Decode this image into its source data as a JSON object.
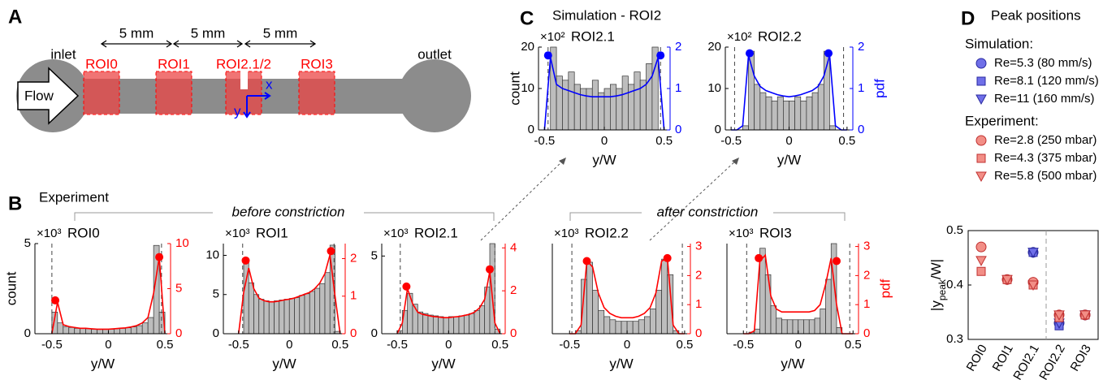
{
  "panel_labels": [
    "A",
    "B",
    "C",
    "D"
  ],
  "diagram": {
    "inlet": "inlet",
    "outlet": "outlet",
    "flow": "Flow",
    "rois": [
      "ROI0",
      "ROI1",
      "ROI2.1/2",
      "ROI3"
    ],
    "spacings": [
      "5 mm",
      "5 mm",
      "5 mm"
    ],
    "axis_x": "x",
    "axis_y": "y"
  },
  "annotations": {
    "experiment": "Experiment",
    "before": "before constriction",
    "after": "after constriction",
    "simulation": "Simulation - ROI2"
  },
  "chart_data": [
    {
      "type": "histogram",
      "title": "ROI0",
      "multiplier": "×10³",
      "color": "#ff0000",
      "xlabel": "y/W",
      "ylabel": "count",
      "bins": [
        -0.5,
        -0.45,
        -0.4,
        -0.35,
        -0.3,
        -0.25,
        -0.2,
        -0.15,
        -0.1,
        -0.05,
        0,
        0.05,
        0.1,
        0.15,
        0.2,
        0.25,
        0.3,
        0.35,
        0.4,
        0.45,
        0.5
      ],
      "counts": [
        1.2,
        0.6,
        0.4,
        0.35,
        0.3,
        0.3,
        0.28,
        0.25,
        0.25,
        0.25,
        0.25,
        0.28,
        0.3,
        0.33,
        0.38,
        0.45,
        0.6,
        0.9,
        4.9,
        1.2
      ],
      "pdf": {
        "x": [
          -0.5,
          -0.45,
          -0.4,
          -0.35,
          -0.3,
          -0.25,
          -0.2,
          -0.15,
          -0.1,
          -0.05,
          0,
          0.05,
          0.1,
          0.15,
          0.2,
          0.25,
          0.3,
          0.35,
          0.4,
          0.45,
          0.5
        ],
        "y": [
          0,
          3.5,
          1.0,
          0.8,
          0.7,
          0.6,
          0.6,
          0.55,
          0.5,
          0.5,
          0.5,
          0.55,
          0.6,
          0.65,
          0.75,
          0.9,
          1.2,
          1.8,
          4.5,
          8.5,
          0
        ]
      },
      "peaks": {
        "x": [
          -0.47,
          0.45
        ],
        "y": [
          3.7,
          8.5
        ]
      },
      "walls": [
        -0.5,
        0.47
      ],
      "xlim": [
        -0.65,
        0.55
      ],
      "xticks": [
        -0.5,
        0,
        0.5
      ],
      "ylim": [
        0,
        5
      ],
      "yticks": [
        0,
        5
      ],
      "y2lim": [
        0,
        10
      ],
      "y2ticks": [
        0,
        5,
        10
      ]
    },
    {
      "type": "histogram",
      "title": "ROI1",
      "multiplier": "×10³",
      "color": "#ff0000",
      "xlabel": "y/W",
      "bins": [
        -0.5,
        -0.45,
        -0.4,
        -0.35,
        -0.3,
        -0.25,
        -0.2,
        -0.15,
        -0.1,
        -0.05,
        0,
        0.05,
        0.1,
        0.15,
        0.2,
        0.25,
        0.3,
        0.35,
        0.4,
        0.45,
        0.5
      ],
      "counts": [
        0,
        9.5,
        6.5,
        5,
        4.4,
        4.2,
        4.1,
        4.2,
        4.3,
        4.4,
        4.5,
        4.6,
        4.9,
        5.1,
        5.4,
        5.8,
        6.4,
        7.8,
        11.3,
        0.3
      ],
      "pdf": {
        "x": [
          -0.5,
          -0.45,
          -0.4,
          -0.35,
          -0.3,
          -0.25,
          -0.2,
          -0.15,
          -0.1,
          -0.05,
          0,
          0.05,
          0.1,
          0.15,
          0.2,
          0.25,
          0.3,
          0.35,
          0.4,
          0.45,
          0.5
        ],
        "y": [
          0,
          1.1,
          1.75,
          1.2,
          0.95,
          0.88,
          0.85,
          0.85,
          0.87,
          0.9,
          0.92,
          0.95,
          1.0,
          1.05,
          1.1,
          1.2,
          1.35,
          1.6,
          2.1,
          1.0,
          0
        ]
      },
      "peaks": {
        "x": [
          -0.43,
          0.41
        ],
        "y": [
          1.95,
          2.2
        ]
      },
      "walls": [
        -0.46,
        0.44
      ],
      "xlim": [
        -0.65,
        0.55
      ],
      "xticks": [
        -0.5,
        0,
        0.5
      ],
      "ylim": [
        0,
        11.5
      ],
      "yticks": [
        0,
        5,
        10
      ],
      "y2lim": [
        0,
        2.4
      ],
      "y2ticks": [
        0,
        1,
        2
      ]
    },
    {
      "type": "histogram",
      "title": "ROI2.1",
      "multiplier": "×10³",
      "color": "#ff0000",
      "xlabel": "y/W",
      "bins": [
        -0.5,
        -0.45,
        -0.4,
        -0.35,
        -0.3,
        -0.25,
        -0.2,
        -0.15,
        -0.1,
        -0.05,
        0,
        0.05,
        0.1,
        0.15,
        0.2,
        0.25,
        0.3,
        0.35,
        0.4,
        0.45,
        0.5
      ],
      "counts": [
        0.2,
        1.5,
        2.6,
        1.9,
        1.4,
        1.3,
        1.2,
        1.15,
        1.1,
        1.05,
        1.1,
        1.1,
        1.15,
        1.2,
        1.3,
        1.5,
        1.8,
        3.0,
        5.8,
        0.3
      ],
      "pdf": {
        "x": [
          -0.5,
          -0.45,
          -0.4,
          -0.35,
          -0.3,
          -0.25,
          -0.2,
          -0.15,
          -0.1,
          -0.05,
          0,
          0.05,
          0.1,
          0.15,
          0.2,
          0.25,
          0.3,
          0.35,
          0.4,
          0.45,
          0.5
        ],
        "y": [
          0,
          0.5,
          2.1,
          1.4,
          1.0,
          0.9,
          0.85,
          0.8,
          0.78,
          0.75,
          0.75,
          0.78,
          0.8,
          0.85,
          0.9,
          1.0,
          1.2,
          1.6,
          2.9,
          0.5,
          0
        ]
      },
      "peaks": {
        "x": [
          -0.41,
          0.4
        ],
        "y": [
          2.2,
          3.0
        ]
      },
      "walls": [
        -0.47,
        0.45
      ],
      "xlim": [
        -0.65,
        0.55
      ],
      "xticks": [
        -0.5,
        0,
        0.5
      ],
      "ylim": [
        0,
        5.8
      ],
      "yticks": [
        0,
        5
      ],
      "y2lim": [
        0,
        4.2
      ],
      "y2ticks": [
        0,
        2,
        4
      ]
    },
    {
      "type": "histogram",
      "title": "ROI2.2",
      "multiplier": "×10³",
      "color": "#ff0000",
      "xlabel": "y/W",
      "bins": [
        -0.5,
        -0.45,
        -0.4,
        -0.35,
        -0.3,
        -0.25,
        -0.2,
        -0.15,
        -0.1,
        -0.05,
        0,
        0.05,
        0.1,
        0.15,
        0.2,
        0.25,
        0.3,
        0.35,
        0.4,
        0.45,
        0.5
      ],
      "counts": [
        0,
        0.2,
        3.5,
        4.6,
        2.8,
        1.5,
        1.1,
        0.9,
        0.8,
        0.8,
        0.8,
        0.8,
        0.9,
        1.1,
        1.6,
        2.8,
        4.8,
        3.8,
        0.2,
        0
      ],
      "pdf": {
        "x": [
          -0.5,
          -0.45,
          -0.4,
          -0.35,
          -0.3,
          -0.25,
          -0.2,
          -0.15,
          -0.1,
          -0.05,
          0,
          0.05,
          0.1,
          0.15,
          0.2,
          0.25,
          0.3,
          0.35,
          0.4,
          0.45,
          0.5
        ],
        "y": [
          0,
          0,
          0.3,
          2.5,
          2.3,
          1.4,
          0.9,
          0.7,
          0.6,
          0.55,
          0.55,
          0.55,
          0.6,
          0.7,
          0.9,
          1.4,
          2.5,
          2.6,
          0.3,
          0,
          0
        ]
      },
      "peaks": {
        "x": [
          -0.35,
          0.35
        ],
        "y": [
          2.5,
          2.6
        ]
      },
      "walls": [
        -0.48,
        0.48
      ],
      "xlim": [
        -0.65,
        0.55
      ],
      "xticks": [
        -0.5,
        0,
        0.5
      ],
      "ylim": [
        0,
        5.8
      ],
      "y2lim": [
        0,
        3.1
      ],
      "y2ticks": [
        0,
        1,
        2,
        3
      ]
    },
    {
      "type": "histogram",
      "title": "ROI3",
      "multiplier": "×10³",
      "color": "#ff0000",
      "xlabel": "y/W",
      "y2label": "pdf",
      "bins": [
        -0.5,
        -0.45,
        -0.4,
        -0.35,
        -0.3,
        -0.25,
        -0.2,
        -0.15,
        -0.1,
        -0.05,
        0,
        0.05,
        0.1,
        0.15,
        0.2,
        0.25,
        0.3,
        0.35,
        0.4,
        0.45,
        0.5
      ],
      "counts": [
        0,
        0.1,
        0.3,
        5.5,
        3.8,
        1.8,
        1.0,
        0.9,
        0.9,
        0.9,
        0.9,
        0.9,
        0.9,
        1.0,
        1.6,
        3.5,
        5.8,
        0.4,
        0,
        0
      ],
      "pdf": {
        "x": [
          -0.5,
          -0.45,
          -0.4,
          -0.35,
          -0.3,
          -0.25,
          -0.2,
          -0.15,
          -0.1,
          -0.05,
          0,
          0.05,
          0.1,
          0.15,
          0.2,
          0.25,
          0.3,
          0.35,
          0.4,
          0.45,
          0.5
        ],
        "y": [
          0,
          0,
          0.1,
          2.5,
          2.7,
          1.3,
          0.85,
          0.75,
          0.75,
          0.75,
          0.75,
          0.75,
          0.75,
          0.8,
          1.0,
          1.7,
          2.6,
          1.0,
          0,
          0,
          0
        ]
      },
      "peaks": {
        "x": [
          -0.36,
          0.35
        ],
        "y": [
          2.6,
          2.5
        ]
      },
      "walls": [
        -0.47,
        0.47
      ],
      "xlim": [
        -0.65,
        0.55
      ],
      "xticks": [
        -0.5,
        0,
        0.5
      ],
      "ylim": [
        0,
        5.8
      ],
      "y2lim": [
        0,
        3.1
      ],
      "y2ticks": [
        0,
        1,
        2,
        3
      ]
    },
    {
      "type": "histogram",
      "title": "ROI2.1",
      "multiplier": "×10²",
      "color": "#0000ff",
      "xlabel": "y/W",
      "ylabel": "count",
      "bins": [
        -0.5,
        -0.45,
        -0.4,
        -0.35,
        -0.3,
        -0.25,
        -0.2,
        -0.15,
        -0.1,
        -0.05,
        0,
        0.05,
        0.1,
        0.15,
        0.2,
        0.25,
        0.3,
        0.35,
        0.4,
        0.45,
        0.5
      ],
      "counts": [
        0,
        20,
        13,
        12,
        14,
        11,
        10,
        10,
        12,
        9,
        10,
        11,
        10,
        13,
        11,
        14,
        12,
        16,
        20,
        0
      ],
      "pdf": {
        "x": [
          -0.5,
          -0.45,
          -0.4,
          -0.35,
          -0.3,
          -0.25,
          -0.2,
          -0.15,
          -0.1,
          -0.05,
          0,
          0.05,
          0.1,
          0.15,
          0.2,
          0.25,
          0.3,
          0.35,
          0.4,
          0.45,
          0.5
        ],
        "y": [
          0,
          1.75,
          1.1,
          1.0,
          0.95,
          0.9,
          0.85,
          0.82,
          0.8,
          0.8,
          0.8,
          0.8,
          0.82,
          0.85,
          0.9,
          0.95,
          1.0,
          1.1,
          1.3,
          1.75,
          0
        ]
      },
      "peaks": {
        "x": [
          -0.47,
          0.47
        ],
        "y": [
          1.8,
          1.8
        ]
      },
      "walls": [
        -0.47,
        0.47
      ],
      "xlim": [
        -0.55,
        0.55
      ],
      "xticks": [
        -0.5,
        0,
        0.5
      ],
      "ylim": [
        0,
        20
      ],
      "yticks": [
        0,
        10,
        20
      ],
      "y2lim": [
        0,
        2
      ],
      "y2ticks": [
        0,
        1,
        2
      ]
    },
    {
      "type": "histogram",
      "title": "ROI2.2",
      "multiplier": "×10²",
      "color": "#0000ff",
      "xlabel": "y/W",
      "y2label": "pdf",
      "bins": [
        -0.5,
        -0.45,
        -0.4,
        -0.35,
        -0.3,
        -0.25,
        -0.2,
        -0.15,
        -0.1,
        -0.05,
        0,
        0.05,
        0.1,
        0.15,
        0.2,
        0.25,
        0.3,
        0.35,
        0.4,
        0.45,
        0.5
      ],
      "counts": [
        0,
        0,
        1,
        19,
        11,
        9,
        8,
        7,
        8,
        7,
        7,
        8,
        7,
        8,
        9,
        11,
        19,
        1,
        0,
        0
      ],
      "pdf": {
        "x": [
          -0.5,
          -0.45,
          -0.4,
          -0.35,
          -0.3,
          -0.25,
          -0.2,
          -0.15,
          -0.1,
          -0.05,
          0,
          0.05,
          0.1,
          0.15,
          0.2,
          0.25,
          0.3,
          0.35,
          0.4,
          0.45,
          0.5
        ],
        "y": [
          0,
          0,
          0.1,
          1.8,
          1.3,
          1.05,
          0.95,
          0.9,
          0.85,
          0.82,
          0.8,
          0.82,
          0.85,
          0.9,
          0.95,
          1.05,
          1.3,
          1.8,
          0.1,
          0,
          0
        ]
      },
      "peaks": {
        "x": [
          -0.34,
          0.34
        ],
        "y": [
          1.85,
          1.85
        ]
      },
      "walls": [
        -0.47,
        0.47
      ],
      "xlim": [
        -0.55,
        0.55
      ],
      "xticks": [
        -0.5,
        0,
        0.5
      ],
      "ylim": [
        0,
        20
      ],
      "yticks": [
        0,
        10,
        20
      ],
      "y2lim": [
        0,
        2
      ],
      "y2ticks": [
        0,
        1,
        2
      ]
    },
    {
      "type": "scatter",
      "title": "Peak positions",
      "ylabel": [
        "|y",
        "peak",
        "/W|"
      ],
      "legend_groups": [
        "Simulation:",
        "Experiment:"
      ],
      "categories": [
        "ROI0",
        "ROI1",
        "ROI2.1",
        "ROI2.2",
        "ROI3"
      ],
      "ylim": [
        0.3,
        0.5
      ],
      "yticks": [
        0.3,
        0.4,
        0.5
      ],
      "series": [
        {
          "name": "Re=5.3 (80 mm/s)",
          "group": 0,
          "marker": "circle",
          "color": "#6f6fe8",
          "values": [
            null,
            null,
            0.46,
            0.33,
            0.345
          ]
        },
        {
          "name": "Re=8.1 (120 mm/s)",
          "group": 0,
          "marker": "square",
          "color": "#6f6fe8",
          "values": [
            null,
            null,
            0.46,
            0.325,
            0.345
          ]
        },
        {
          "name": "Re=11 (160 mm/s)",
          "group": 0,
          "marker": "triangle",
          "color": "#6f6fe8",
          "values": [
            null,
            null,
            0.46,
            0.33,
            0.345
          ]
        },
        {
          "name": "Re=2.8 (250 mbar)",
          "group": 1,
          "marker": "circle",
          "color": "#f28e86",
          "values": [
            0.47,
            0.41,
            0.405,
            0.345,
            0.345
          ]
        },
        {
          "name": "Re=4.3 (375 mbar)",
          "group": 1,
          "marker": "square",
          "color": "#f28e86",
          "values": [
            0.425,
            0.41,
            0.4,
            0.34,
            0.345
          ]
        },
        {
          "name": "Re=5.8 (500 mbar)",
          "group": 1,
          "marker": "triangle",
          "color": "#f28e86",
          "values": [
            0.445,
            0.41,
            0.4,
            0.345,
            0.345
          ]
        }
      ]
    }
  ]
}
